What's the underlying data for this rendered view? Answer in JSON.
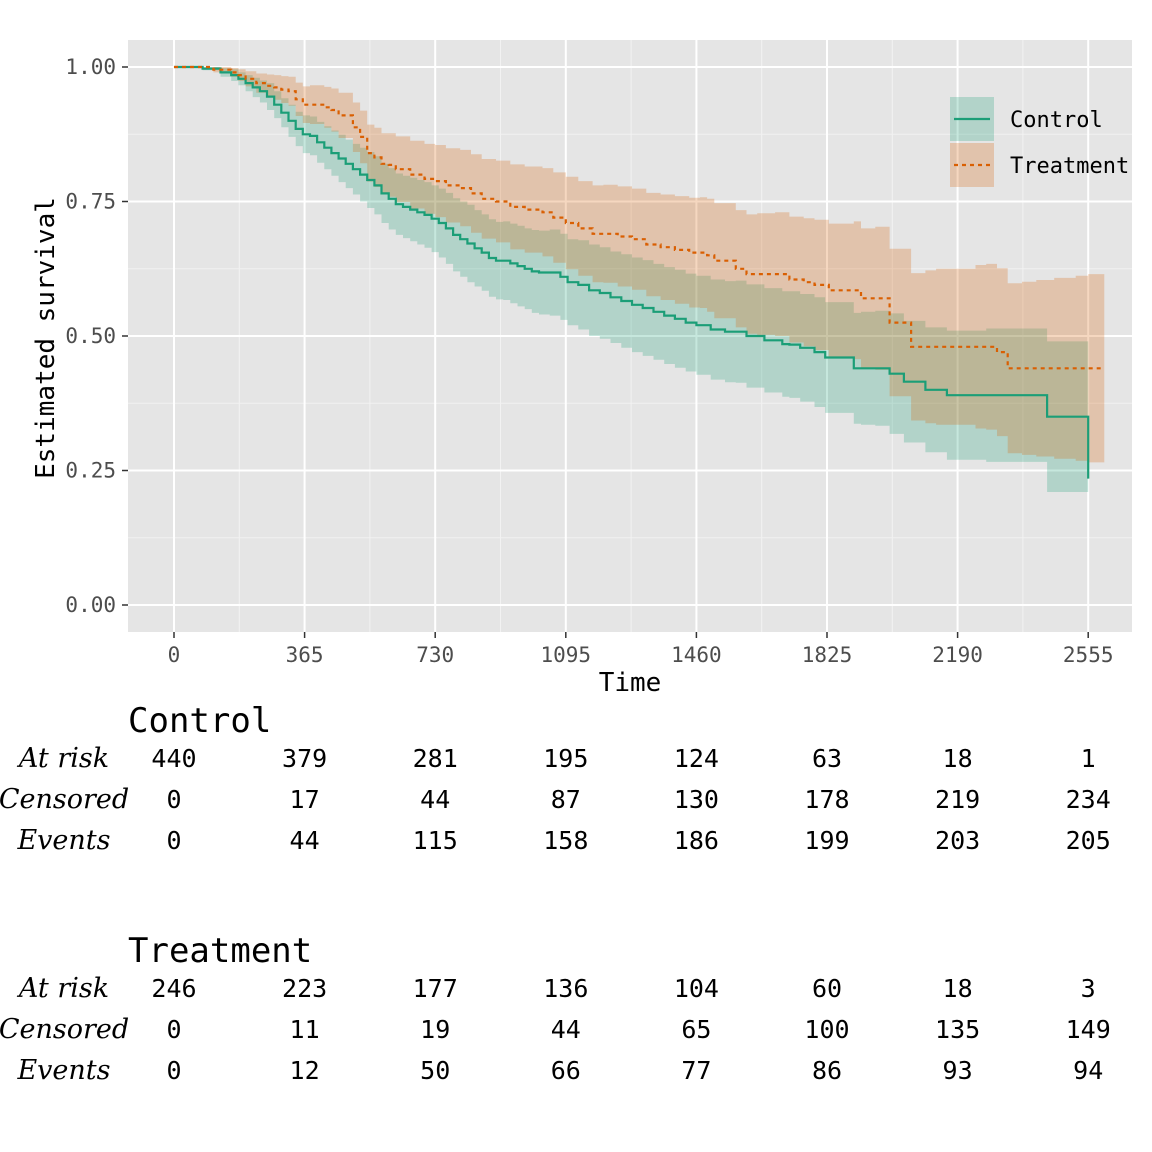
{
  "chart_data": {
    "type": "line",
    "subtype": "kaplan-meier survival curve with confidence bands and risk table",
    "xlabel": "Time",
    "ylabel": "Estimated survival",
    "xlim": [
      -170,
      2600
    ],
    "ylim": [
      -0.05,
      1.05
    ],
    "x_ticks": [
      0,
      365,
      730,
      1095,
      1460,
      1825,
      2190,
      2555
    ],
    "x_tick_labels": [
      "0",
      "365",
      "730",
      "1095",
      "1460",
      "1825",
      "2190",
      "2555"
    ],
    "y_ticks": [
      0,
      0.25,
      0.5,
      0.75,
      1.0
    ],
    "y_tick_labels": [
      "0.00",
      "0.25",
      "0.50",
      "0.75",
      "1.00"
    ],
    "grid": true,
    "legend_position": "top-right",
    "series": [
      {
        "name": "Control",
        "color": "#1b9e77",
        "linestyle": "solid",
        "x": [
          0,
          80,
          130,
          160,
          180,
          200,
          220,
          240,
          260,
          280,
          300,
          320,
          340,
          360,
          380,
          400,
          420,
          440,
          460,
          480,
          500,
          520,
          540,
          560,
          580,
          600,
          620,
          640,
          660,
          680,
          700,
          720,
          740,
          760,
          780,
          800,
          820,
          840,
          860,
          880,
          900,
          920,
          940,
          960,
          980,
          1000,
          1020,
          1050,
          1080,
          1100,
          1130,
          1160,
          1190,
          1220,
          1250,
          1280,
          1310,
          1340,
          1370,
          1400,
          1430,
          1460,
          1500,
          1540,
          1570,
          1600,
          1650,
          1700,
          1720,
          1750,
          1790,
          1820,
          1900,
          1920,
          1960,
          2000,
          2040,
          2100,
          2160,
          2270,
          2440,
          2555
        ],
        "y": [
          1.0,
          0.997,
          0.99,
          0.985,
          0.978,
          0.97,
          0.962,
          0.955,
          0.945,
          0.93,
          0.915,
          0.9,
          0.885,
          0.875,
          0.872,
          0.86,
          0.85,
          0.84,
          0.83,
          0.82,
          0.81,
          0.8,
          0.79,
          0.78,
          0.765,
          0.755,
          0.745,
          0.74,
          0.735,
          0.73,
          0.725,
          0.718,
          0.71,
          0.7,
          0.688,
          0.68,
          0.672,
          0.663,
          0.655,
          0.645,
          0.64,
          0.64,
          0.635,
          0.63,
          0.625,
          0.62,
          0.618,
          0.618,
          0.61,
          0.6,
          0.595,
          0.585,
          0.58,
          0.572,
          0.565,
          0.558,
          0.552,
          0.545,
          0.538,
          0.532,
          0.525,
          0.52,
          0.512,
          0.508,
          0.508,
          0.5,
          0.492,
          0.485,
          0.484,
          0.478,
          0.47,
          0.46,
          0.44,
          0.44,
          0.44,
          0.43,
          0.415,
          0.4,
          0.39,
          0.39,
          0.35,
          0.235
        ],
        "lower": [
          1.0,
          0.994,
          0.982,
          0.974,
          0.966,
          0.955,
          0.944,
          0.934,
          0.92,
          0.905,
          0.888,
          0.87,
          0.853,
          0.84,
          0.836,
          0.822,
          0.81,
          0.798,
          0.786,
          0.775,
          0.763,
          0.75,
          0.738,
          0.726,
          0.71,
          0.698,
          0.688,
          0.682,
          0.676,
          0.67,
          0.664,
          0.656,
          0.646,
          0.634,
          0.62,
          0.61,
          0.6,
          0.592,
          0.584,
          0.573,
          0.568,
          0.567,
          0.561,
          0.555,
          0.55,
          0.543,
          0.54,
          0.538,
          0.53,
          0.52,
          0.512,
          0.5,
          0.495,
          0.487,
          0.478,
          0.47,
          0.463,
          0.456,
          0.448,
          0.441,
          0.434,
          0.428,
          0.419,
          0.414,
          0.413,
          0.404,
          0.395,
          0.387,
          0.385,
          0.378,
          0.368,
          0.357,
          0.337,
          0.335,
          0.333,
          0.318,
          0.302,
          0.284,
          0.27,
          0.266,
          0.21,
          0.09
        ],
        "upper": [
          1.0,
          1.0,
          0.998,
          0.996,
          0.99,
          0.985,
          0.98,
          0.975,
          0.97,
          0.955,
          0.942,
          0.93,
          0.917,
          0.91,
          0.908,
          0.898,
          0.89,
          0.882,
          0.874,
          0.865,
          0.857,
          0.85,
          0.842,
          0.834,
          0.82,
          0.812,
          0.802,
          0.798,
          0.794,
          0.79,
          0.786,
          0.78,
          0.774,
          0.766,
          0.756,
          0.75,
          0.744,
          0.734,
          0.726,
          0.717,
          0.712,
          0.713,
          0.709,
          0.705,
          0.7,
          0.697,
          0.696,
          0.698,
          0.69,
          0.68,
          0.678,
          0.67,
          0.665,
          0.657,
          0.652,
          0.646,
          0.641,
          0.634,
          0.628,
          0.623,
          0.616,
          0.612,
          0.605,
          0.602,
          0.603,
          0.596,
          0.589,
          0.583,
          0.583,
          0.578,
          0.572,
          0.563,
          0.543,
          0.545,
          0.547,
          0.542,
          0.528,
          0.516,
          0.51,
          0.514,
          0.49,
          0.48
        ]
      },
      {
        "name": "Treatment",
        "color": "#d95f02",
        "linestyle": "dashed",
        "x": [
          0,
          110,
          160,
          180,
          200,
          230,
          260,
          280,
          300,
          320,
          340,
          360,
          380,
          420,
          440,
          460,
          500,
          520,
          540,
          560,
          580,
          600,
          620,
          660,
          700,
          730,
          760,
          800,
          830,
          860,
          900,
          940,
          980,
          1030,
          1060,
          1095,
          1130,
          1170,
          1200,
          1240,
          1280,
          1320,
          1360,
          1400,
          1440,
          1470,
          1490,
          1510,
          1570,
          1600,
          1630,
          1680,
          1720,
          1760,
          1790,
          1830,
          1900,
          1920,
          1960,
          2000,
          2060,
          2100,
          2130,
          2240,
          2270,
          2300,
          2330,
          2370,
          2410,
          2460,
          2520,
          2555,
          2600
        ],
        "y": [
          1.0,
          0.995,
          0.99,
          0.985,
          0.978,
          0.97,
          0.965,
          0.962,
          0.958,
          0.955,
          0.94,
          0.93,
          0.93,
          0.925,
          0.92,
          0.91,
          0.888,
          0.87,
          0.84,
          0.832,
          0.82,
          0.818,
          0.81,
          0.8,
          0.792,
          0.788,
          0.78,
          0.775,
          0.765,
          0.755,
          0.75,
          0.74,
          0.735,
          0.73,
          0.72,
          0.71,
          0.7,
          0.69,
          0.69,
          0.685,
          0.68,
          0.67,
          0.665,
          0.66,
          0.655,
          0.655,
          0.65,
          0.64,
          0.625,
          0.615,
          0.615,
          0.615,
          0.605,
          0.6,
          0.595,
          0.585,
          0.585,
          0.57,
          0.57,
          0.525,
          0.48,
          0.48,
          0.48,
          0.48,
          0.48,
          0.47,
          0.44,
          0.44,
          0.44,
          0.44,
          0.44,
          0.44,
          0.44
        ],
        "lower": [
          1.0,
          0.99,
          0.982,
          0.974,
          0.964,
          0.952,
          0.944,
          0.939,
          0.933,
          0.928,
          0.909,
          0.896,
          0.894,
          0.887,
          0.88,
          0.868,
          0.842,
          0.821,
          0.787,
          0.777,
          0.763,
          0.759,
          0.749,
          0.737,
          0.727,
          0.721,
          0.711,
          0.704,
          0.692,
          0.681,
          0.674,
          0.661,
          0.655,
          0.648,
          0.636,
          0.624,
          0.612,
          0.6,
          0.599,
          0.592,
          0.586,
          0.574,
          0.567,
          0.56,
          0.553,
          0.552,
          0.545,
          0.533,
          0.516,
          0.504,
          0.502,
          0.5,
          0.488,
          0.481,
          0.474,
          0.461,
          0.457,
          0.44,
          0.437,
          0.388,
          0.343,
          0.338,
          0.335,
          0.328,
          0.326,
          0.314,
          0.282,
          0.279,
          0.276,
          0.272,
          0.268,
          0.265,
          0.265
        ],
        "upper": [
          1.0,
          1.0,
          0.998,
          0.996,
          0.992,
          0.988,
          0.986,
          0.985,
          0.983,
          0.982,
          0.971,
          0.964,
          0.966,
          0.963,
          0.96,
          0.952,
          0.934,
          0.919,
          0.893,
          0.887,
          0.877,
          0.877,
          0.871,
          0.863,
          0.857,
          0.855,
          0.849,
          0.846,
          0.838,
          0.829,
          0.826,
          0.819,
          0.815,
          0.812,
          0.804,
          0.796,
          0.788,
          0.78,
          0.781,
          0.778,
          0.774,
          0.766,
          0.763,
          0.76,
          0.757,
          0.758,
          0.755,
          0.747,
          0.734,
          0.726,
          0.728,
          0.73,
          0.722,
          0.719,
          0.716,
          0.709,
          0.713,
          0.7,
          0.703,
          0.662,
          0.617,
          0.622,
          0.625,
          0.632,
          0.634,
          0.626,
          0.598,
          0.601,
          0.604,
          0.608,
          0.612,
          0.615,
          0.615
        ]
      }
    ]
  },
  "risk_table": {
    "row_labels": [
      "At risk",
      "Censored",
      "Events"
    ],
    "groups": [
      {
        "name": "Control",
        "at_risk": [
          "440",
          "379",
          "281",
          "195",
          "124",
          "63",
          "18",
          "1"
        ],
        "censored": [
          "0",
          "17",
          "44",
          "87",
          "130",
          "178",
          "219",
          "234"
        ],
        "events": [
          "0",
          "44",
          "115",
          "158",
          "186",
          "199",
          "203",
          "205"
        ]
      },
      {
        "name": "Treatment",
        "at_risk": [
          "246",
          "223",
          "177",
          "136",
          "104",
          "60",
          "18",
          "3"
        ],
        "censored": [
          "0",
          "11",
          "19",
          "44",
          "65",
          "100",
          "135",
          "149"
        ],
        "events": [
          "0",
          "12",
          "50",
          "66",
          "77",
          "86",
          "93",
          "94"
        ]
      }
    ]
  }
}
